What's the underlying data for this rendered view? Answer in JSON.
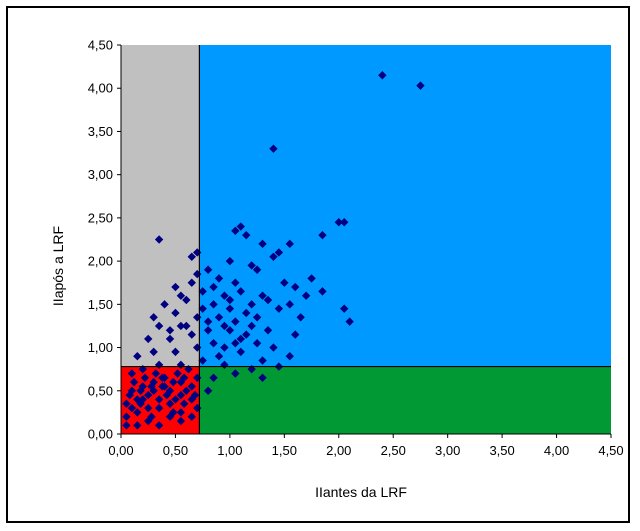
{
  "chart_data": {
    "type": "scatter",
    "xlabel": "IIantes da LRF",
    "ylabel": "IIapós a LRF",
    "xlim": [
      0,
      4.5
    ],
    "ylim": [
      0,
      4.5
    ],
    "x_ticks": [
      "0,00",
      "0,50",
      "1,00",
      "1,50",
      "2,00",
      "2,50",
      "3,00",
      "3,50",
      "4,00",
      "4,50"
    ],
    "y_ticks": [
      "0,00",
      "0,50",
      "1,00",
      "1,50",
      "2,00",
      "2,50",
      "3,00",
      "3,50",
      "4,00",
      "4,50"
    ],
    "grid": false,
    "legend": "none",
    "thresholds": {
      "x": 0.72,
      "y": 0.78
    },
    "regions": [
      {
        "name": "bottom-left",
        "x": [
          0,
          0.72
        ],
        "y": [
          0,
          0.78
        ],
        "color": "#ff0000"
      },
      {
        "name": "top-left",
        "x": [
          0,
          0.72
        ],
        "y": [
          0.78,
          4.5
        ],
        "color": "#c0c0c0"
      },
      {
        "name": "bottom-right",
        "x": [
          0.72,
          4.5
        ],
        "y": [
          0,
          0.78
        ],
        "color": "#009933"
      },
      {
        "name": "top-right",
        "x": [
          0.72,
          4.5
        ],
        "y": [
          0.78,
          4.5
        ],
        "color": "#0099ff"
      }
    ],
    "marker_color": "#000080",
    "points": [
      [
        2.4,
        4.15
      ],
      [
        2.75,
        4.03
      ],
      [
        1.4,
        3.3
      ],
      [
        0.35,
        2.25
      ],
      [
        2.05,
        2.45
      ],
      [
        2.0,
        2.45
      ],
      [
        1.05,
        2.35
      ],
      [
        1.1,
        2.4
      ],
      [
        1.15,
        2.3
      ],
      [
        0.65,
        2.05
      ],
      [
        0.7,
        2.1
      ],
      [
        1.3,
        2.2
      ],
      [
        1.45,
        2.1
      ],
      [
        1.55,
        2.2
      ],
      [
        1.85,
        2.3
      ],
      [
        0.8,
        1.9
      ],
      [
        1.0,
        2.0
      ],
      [
        1.2,
        1.95
      ],
      [
        1.25,
        1.9
      ],
      [
        1.4,
        2.05
      ],
      [
        1.75,
        1.8
      ],
      [
        0.5,
        1.7
      ],
      [
        0.65,
        1.75
      ],
      [
        0.7,
        1.85
      ],
      [
        0.9,
        1.8
      ],
      [
        1.05,
        1.75
      ],
      [
        1.5,
        1.75
      ],
      [
        1.6,
        1.7
      ],
      [
        0.55,
        1.6
      ],
      [
        0.75,
        1.65
      ],
      [
        0.95,
        1.6
      ],
      [
        1.1,
        1.65
      ],
      [
        1.3,
        1.6
      ],
      [
        1.7,
        1.6
      ],
      [
        1.85,
        1.65
      ],
      [
        0.4,
        1.5
      ],
      [
        0.6,
        1.55
      ],
      [
        0.85,
        1.5
      ],
      [
        1.0,
        1.45
      ],
      [
        1.2,
        1.5
      ],
      [
        1.45,
        1.45
      ],
      [
        1.55,
        1.5
      ],
      [
        2.05,
        1.45
      ],
      [
        0.3,
        1.35
      ],
      [
        0.5,
        1.4
      ],
      [
        0.7,
        1.35
      ],
      [
        0.9,
        1.35
      ],
      [
        1.05,
        1.3
      ],
      [
        1.25,
        1.35
      ],
      [
        1.65,
        1.35
      ],
      [
        2.1,
        1.3
      ],
      [
        0.35,
        1.25
      ],
      [
        0.55,
        1.25
      ],
      [
        0.8,
        1.2
      ],
      [
        1.0,
        1.2
      ],
      [
        1.15,
        1.15
      ],
      [
        1.35,
        1.2
      ],
      [
        1.6,
        1.15
      ],
      [
        0.25,
        1.1
      ],
      [
        0.45,
        1.1
      ],
      [
        0.65,
        1.15
      ],
      [
        0.85,
        1.05
      ],
      [
        1.05,
        1.05
      ],
      [
        1.25,
        1.05
      ],
      [
        1.4,
        1.0
      ],
      [
        0.15,
        0.9
      ],
      [
        0.3,
        0.95
      ],
      [
        0.5,
        0.95
      ],
      [
        0.7,
        1.0
      ],
      [
        0.9,
        0.9
      ],
      [
        1.1,
        0.95
      ],
      [
        1.3,
        0.85
      ],
      [
        1.55,
        0.9
      ],
      [
        0.1,
        0.7
      ],
      [
        0.2,
        0.75
      ],
      [
        0.35,
        0.8
      ],
      [
        0.55,
        0.8
      ],
      [
        0.75,
        0.85
      ],
      [
        0.95,
        0.8
      ],
      [
        1.2,
        0.75
      ],
      [
        1.45,
        0.78
      ],
      [
        0.1,
        0.5
      ],
      [
        0.2,
        0.55
      ],
      [
        0.3,
        0.6
      ],
      [
        0.4,
        0.65
      ],
      [
        0.55,
        0.6
      ],
      [
        0.65,
        0.55
      ],
      [
        0.85,
        0.65
      ],
      [
        1.05,
        0.7
      ],
      [
        1.3,
        0.65
      ],
      [
        0.05,
        0.35
      ],
      [
        0.15,
        0.4
      ],
      [
        0.25,
        0.45
      ],
      [
        0.35,
        0.4
      ],
      [
        0.45,
        0.5
      ],
      [
        0.55,
        0.45
      ],
      [
        0.65,
        0.4
      ],
      [
        0.8,
        0.5
      ],
      [
        0.05,
        0.2
      ],
      [
        0.15,
        0.25
      ],
      [
        0.25,
        0.3
      ],
      [
        0.35,
        0.3
      ],
      [
        0.45,
        0.35
      ],
      [
        0.55,
        0.25
      ],
      [
        0.7,
        0.3
      ],
      [
        0.05,
        0.1
      ],
      [
        0.15,
        0.1
      ],
      [
        0.25,
        0.15
      ],
      [
        0.35,
        0.1
      ],
      [
        0.45,
        0.2
      ],
      [
        0.55,
        0.15
      ],
      [
        0.65,
        0.2
      ],
      [
        0.1,
        0.3
      ],
      [
        0.2,
        0.4
      ],
      [
        0.3,
        0.5
      ],
      [
        0.4,
        0.55
      ],
      [
        0.5,
        0.4
      ],
      [
        0.6,
        0.5
      ],
      [
        0.7,
        0.65
      ],
      [
        0.12,
        0.6
      ],
      [
        0.22,
        0.65
      ],
      [
        0.32,
        0.7
      ],
      [
        0.42,
        0.45
      ],
      [
        0.52,
        0.7
      ],
      [
        0.62,
        0.75
      ],
      [
        0.18,
        0.35
      ],
      [
        0.28,
        0.2
      ],
      [
        0.38,
        0.55
      ],
      [
        0.48,
        0.6
      ],
      [
        0.58,
        0.35
      ],
      [
        0.68,
        0.45
      ],
      [
        0.08,
        0.45
      ],
      [
        0.18,
        0.5
      ],
      [
        0.28,
        0.55
      ],
      [
        0.38,
        0.65
      ],
      [
        0.48,
        0.25
      ],
      [
        0.58,
        0.65
      ],
      [
        0.95,
        1.25
      ],
      [
        1.15,
        1.4
      ],
      [
        1.35,
        1.55
      ],
      [
        0.75,
        1.45
      ],
      [
        0.6,
        1.25
      ],
      [
        0.45,
        1.2
      ],
      [
        0.85,
        1.7
      ],
      [
        1.0,
        1.55
      ],
      [
        1.2,
        1.25
      ],
      [
        1.1,
        1.1
      ],
      [
        0.95,
        1.0
      ],
      [
        0.8,
        1.3
      ]
    ]
  }
}
